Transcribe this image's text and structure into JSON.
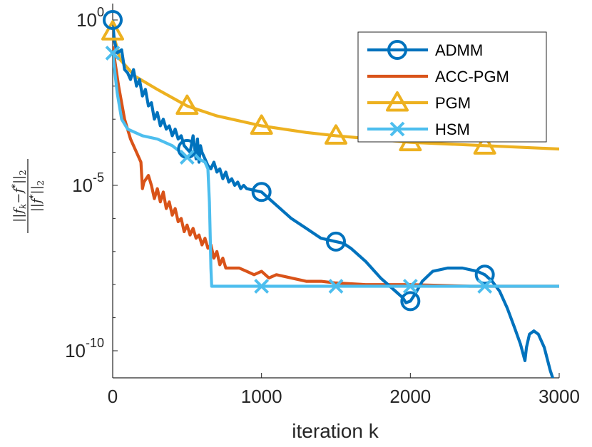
{
  "chart_data": {
    "type": "line",
    "title": "",
    "xlabel": "iteration k",
    "ylabel": "||f_k − f*||_2 / ||f*||_2",
    "ylabel_parts": {
      "num_f": "f",
      "num_k": "k",
      "num_star": "*",
      "num_sub": "2",
      "den_f": "f",
      "den_star": "*",
      "den_sub": "2",
      "minus": "−"
    },
    "yscale": "log",
    "xlim": [
      0,
      3000
    ],
    "ylim_exp": [
      -11,
      0
    ],
    "xticks": [
      0,
      1000,
      2000,
      3000
    ],
    "yticks_exp": [
      0,
      -5,
      -10
    ],
    "ytick_base": "10",
    "legend_loc": "top-right",
    "series": [
      {
        "name": "ADMM",
        "color": "#0072BD",
        "marker": "o",
        "marker_x": [
          0,
          500,
          1000,
          1500,
          2000,
          2500
        ],
        "points": [
          [
            0,
            0
          ],
          [
            10,
            -0.6
          ],
          [
            30,
            -1.0
          ],
          [
            60,
            -0.9
          ],
          [
            80,
            -1.5
          ],
          [
            100,
            -1.6
          ],
          [
            120,
            -1.8
          ],
          [
            140,
            -1.5
          ],
          [
            160,
            -2.0
          ],
          [
            180,
            -1.8
          ],
          [
            200,
            -2.3
          ],
          [
            220,
            -2.1
          ],
          [
            240,
            -2.6
          ],
          [
            260,
            -2.5
          ],
          [
            280,
            -3.0
          ],
          [
            300,
            -2.8
          ],
          [
            320,
            -3.2
          ],
          [
            340,
            -3.0
          ],
          [
            360,
            -3.3
          ],
          [
            380,
            -3.2
          ],
          [
            400,
            -3.5
          ],
          [
            420,
            -3.3
          ],
          [
            440,
            -3.6
          ],
          [
            460,
            -3.5
          ],
          [
            480,
            -3.8
          ],
          [
            500,
            -3.9
          ],
          [
            520,
            -4.0
          ],
          [
            540,
            -3.5
          ],
          [
            560,
            -4.2
          ],
          [
            570,
            -3.6
          ],
          [
            580,
            -4.3
          ],
          [
            590,
            -3.8
          ],
          [
            600,
            -4.0
          ],
          [
            620,
            -4.2
          ],
          [
            640,
            -4.4
          ],
          [
            660,
            -4.5
          ],
          [
            680,
            -4.3
          ],
          [
            700,
            -4.6
          ],
          [
            720,
            -4.5
          ],
          [
            740,
            -4.8
          ],
          [
            760,
            -4.6
          ],
          [
            780,
            -4.9
          ],
          [
            800,
            -4.8
          ],
          [
            820,
            -5.0
          ],
          [
            840,
            -4.9
          ],
          [
            860,
            -5.1
          ],
          [
            880,
            -5.0
          ],
          [
            900,
            -5.1
          ],
          [
            950,
            -5.15
          ],
          [
            1000,
            -5.2
          ],
          [
            1050,
            -5.4
          ],
          [
            1100,
            -5.6
          ],
          [
            1200,
            -6.0
          ],
          [
            1300,
            -6.3
          ],
          [
            1400,
            -6.6
          ],
          [
            1500,
            -6.7
          ],
          [
            1550,
            -6.75
          ],
          [
            1600,
            -6.9
          ],
          [
            1700,
            -7.3
          ],
          [
            1800,
            -7.8
          ],
          [
            1900,
            -8.2
          ],
          [
            1950,
            -8.4
          ],
          [
            1970,
            -8.55
          ],
          [
            2000,
            -8.5
          ],
          [
            2030,
            -8.3
          ],
          [
            2080,
            -7.9
          ],
          [
            2150,
            -7.6
          ],
          [
            2250,
            -7.5
          ],
          [
            2350,
            -7.5
          ],
          [
            2450,
            -7.6
          ],
          [
            2500,
            -7.7
          ],
          [
            2550,
            -7.9
          ],
          [
            2600,
            -8.2
          ],
          [
            2650,
            -8.7
          ],
          [
            2700,
            -9.3
          ],
          [
            2740,
            -9.8
          ],
          [
            2770,
            -10.3
          ],
          [
            2780,
            -9.9
          ],
          [
            2800,
            -9.5
          ],
          [
            2830,
            -9.4
          ],
          [
            2860,
            -9.5
          ],
          [
            2900,
            -9.9
          ],
          [
            2940,
            -10.6
          ],
          [
            2970,
            -11.0
          ]
        ]
      },
      {
        "name": "ACC-PGM",
        "color": "#D95319",
        "marker": "none",
        "marker_x": [],
        "points": [
          [
            0,
            -0.8
          ],
          [
            40,
            -2.0
          ],
          [
            80,
            -3.0
          ],
          [
            120,
            -3.6
          ],
          [
            160,
            -4.0
          ],
          [
            190,
            -4.3
          ],
          [
            200,
            -5.1
          ],
          [
            210,
            -4.9
          ],
          [
            240,
            -4.7
          ],
          [
            260,
            -5.0
          ],
          [
            280,
            -5.4
          ],
          [
            300,
            -5.1
          ],
          [
            320,
            -5.5
          ],
          [
            340,
            -5.2
          ],
          [
            360,
            -5.7
          ],
          [
            380,
            -5.5
          ],
          [
            400,
            -5.9
          ],
          [
            420,
            -5.7
          ],
          [
            440,
            -6.1
          ],
          [
            460,
            -6.0
          ],
          [
            480,
            -6.4
          ],
          [
            500,
            -6.2
          ],
          [
            520,
            -6.5
          ],
          [
            540,
            -6.3
          ],
          [
            560,
            -6.6
          ],
          [
            580,
            -6.5
          ],
          [
            600,
            -6.8
          ],
          [
            620,
            -6.6
          ],
          [
            640,
            -6.9
          ],
          [
            660,
            -6.8
          ],
          [
            680,
            -7.2
          ],
          [
            700,
            -7.0
          ],
          [
            720,
            -7.4
          ],
          [
            740,
            -7.2
          ],
          [
            760,
            -7.5
          ],
          [
            800,
            -7.5
          ],
          [
            850,
            -7.5
          ],
          [
            900,
            -7.6
          ],
          [
            950,
            -7.7
          ],
          [
            1000,
            -7.6
          ],
          [
            1050,
            -7.8
          ],
          [
            1100,
            -7.7
          ],
          [
            1200,
            -7.8
          ],
          [
            1300,
            -7.9
          ],
          [
            1400,
            -7.9
          ],
          [
            1500,
            -7.95
          ],
          [
            1700,
            -8.0
          ],
          [
            2000,
            -8.0
          ],
          [
            2400,
            -8.05
          ],
          [
            3000,
            -8.05
          ]
        ]
      },
      {
        "name": "PGM",
        "color": "#EDB120",
        "marker": "^",
        "marker_x": [
          0,
          500,
          1000,
          1500,
          2000,
          2500
        ],
        "points": [
          [
            0,
            -0.35
          ],
          [
            50,
            -1.2
          ],
          [
            150,
            -1.7
          ],
          [
            300,
            -2.1
          ],
          [
            500,
            -2.6
          ],
          [
            700,
            -2.9
          ],
          [
            1000,
            -3.2
          ],
          [
            1300,
            -3.4
          ],
          [
            1500,
            -3.5
          ],
          [
            2000,
            -3.7
          ],
          [
            2500,
            -3.8
          ],
          [
            3000,
            -3.9
          ]
        ]
      },
      {
        "name": "HSM",
        "color": "#4DBEEE",
        "marker": "x",
        "marker_x": [
          0,
          500,
          1000,
          1500,
          2000,
          2500
        ],
        "points": [
          [
            0,
            -1.0
          ],
          [
            30,
            -2.2
          ],
          [
            60,
            -3.0
          ],
          [
            100,
            -3.3
          ],
          [
            200,
            -3.5
          ],
          [
            300,
            -3.6
          ],
          [
            400,
            -3.8
          ],
          [
            500,
            -4.15
          ],
          [
            540,
            -4.0
          ],
          [
            580,
            -4.2
          ],
          [
            620,
            -4.3
          ],
          [
            640,
            -4.5
          ],
          [
            650,
            -5.5
          ],
          [
            655,
            -6.5
          ],
          [
            660,
            -7.5
          ],
          [
            665,
            -8.05
          ],
          [
            700,
            -8.05
          ],
          [
            1000,
            -8.05
          ],
          [
            2000,
            -8.05
          ],
          [
            3000,
            -8.05
          ]
        ]
      }
    ]
  }
}
